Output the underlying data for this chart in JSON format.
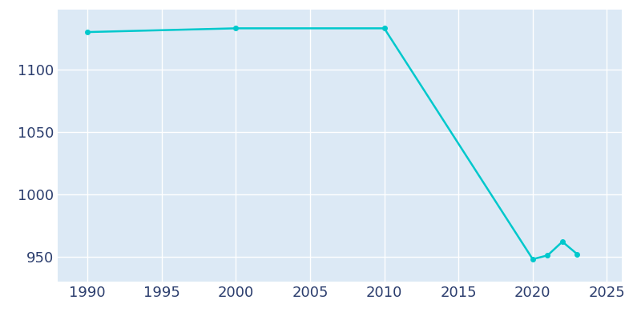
{
  "years": [
    1990,
    2000,
    2010,
    2020,
    2021,
    2022,
    2023
  ],
  "population": [
    1130,
    1133,
    1133,
    948,
    951,
    962,
    952
  ],
  "line_color": "#00C8CC",
  "marker": "o",
  "marker_size": 4,
  "line_width": 1.8,
  "background_color": "#ffffff",
  "plot_bg_color": "#dce9f5",
  "grid_color": "#ffffff",
  "tick_color": "#2c3e6e",
  "xlim": [
    1988,
    2026
  ],
  "ylim": [
    930,
    1148
  ],
  "xticks": [
    1990,
    1995,
    2000,
    2005,
    2010,
    2015,
    2020,
    2025
  ],
  "yticks": [
    950,
    1000,
    1050,
    1100
  ],
  "figsize": [
    8.0,
    4.0
  ],
  "dpi": 100,
  "tick_fontsize": 13
}
